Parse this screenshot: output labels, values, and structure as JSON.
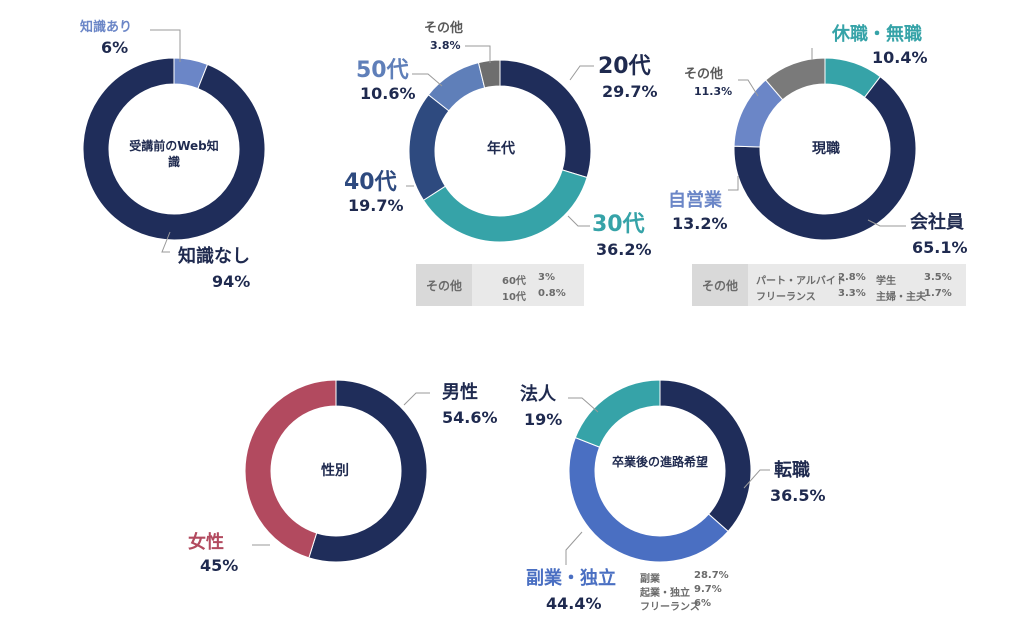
{
  "colors": {
    "navy": "#1f2d5a",
    "periwinkle": "#6b86c7",
    "teal": "#36a3a8",
    "steel": "#2e4a7f",
    "lightsteel": "#5f7fb9",
    "gray": "#777777",
    "blue": "#4a6fc2",
    "crimson": "#b24a5f",
    "textnavy": "#1f2a4f"
  },
  "chart_data": [
    {
      "type": "pie",
      "title": "受講前のWeb知識",
      "slices": [
        {
          "label": "知識あり",
          "value": 6,
          "display": "6%",
          "color": "#6b86c7"
        },
        {
          "label": "知識なし",
          "value": 94,
          "display": "94%",
          "color": "#1f2d5a"
        }
      ]
    },
    {
      "type": "pie",
      "title": "年代",
      "slices": [
        {
          "label": "20代",
          "value": 29.7,
          "display": "29.7%",
          "color": "#1f2d5a"
        },
        {
          "label": "30代",
          "value": 36.2,
          "display": "36.2%",
          "color": "#36a3a8"
        },
        {
          "label": "40代",
          "value": 19.7,
          "display": "19.7%",
          "color": "#2e4a7f"
        },
        {
          "label": "50代",
          "value": 10.6,
          "display": "10.6%",
          "color": "#5f7fb9"
        },
        {
          "label": "その他",
          "value": 3.8,
          "display": "3.8%",
          "color": "#6e6e6e"
        }
      ],
      "other_breakdown": {
        "heading": "その他",
        "items": [
          {
            "label": "60代",
            "value": "3%"
          },
          {
            "label": "10代",
            "value": "0.8%"
          }
        ]
      }
    },
    {
      "type": "pie",
      "title": "現職",
      "slices": [
        {
          "label": "休職・無職",
          "value": 10.4,
          "display": "10.4%",
          "color": "#36a3a8"
        },
        {
          "label": "会社員",
          "value": 65.1,
          "display": "65.1%",
          "color": "#1f2d5a"
        },
        {
          "label": "自営業",
          "value": 13.2,
          "display": "13.2%",
          "color": "#6b86c7"
        },
        {
          "label": "その他",
          "value": 11.3,
          "display": "11.3%",
          "color": "#7a7a7a"
        }
      ],
      "other_breakdown": {
        "heading": "その他",
        "items": [
          {
            "label": "パート・アルバイト",
            "value": "2.8%"
          },
          {
            "label": "学生",
            "value": "3.5%"
          },
          {
            "label": "フリーランス",
            "value": "3.3%"
          },
          {
            "label": "主婦・主夫",
            "value": "1.7%"
          }
        ]
      }
    },
    {
      "type": "pie",
      "title": "性別",
      "slices": [
        {
          "label": "男性",
          "value": 54.6,
          "display": "54.6%",
          "color": "#1f2d5a"
        },
        {
          "label": "女性",
          "value": 45,
          "display": "45%",
          "color": "#b24a5f"
        }
      ]
    },
    {
      "type": "pie",
      "title": "卒業後の進路希望",
      "slices": [
        {
          "label": "転職",
          "value": 36.5,
          "display": "36.5%",
          "color": "#1f2d5a"
        },
        {
          "label": "副業・独立",
          "value": 44.4,
          "display": "44.4%",
          "color": "#4a6fc2"
        },
        {
          "label": "法人",
          "value": 19,
          "display": "19%",
          "color": "#36a3a8"
        }
      ],
      "breakdown": {
        "items": [
          {
            "label": "副業",
            "value": "28.7%"
          },
          {
            "label": "起業・独立",
            "value": "9.7%"
          },
          {
            "label": "フリーランス",
            "value": "6%"
          }
        ]
      }
    }
  ]
}
